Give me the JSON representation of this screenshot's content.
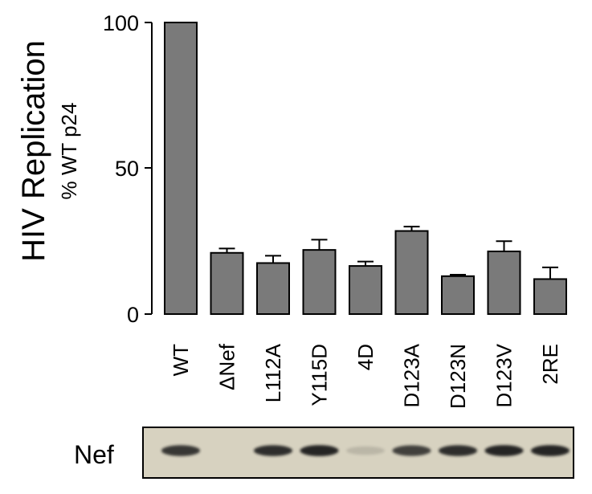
{
  "chart_data": {
    "type": "bar",
    "ylabel": "HIV Replication",
    "ylabel_sub": "% WT p24",
    "xlabel": "",
    "ylim": [
      0,
      100
    ],
    "yticks": [
      "0",
      "50",
      "100"
    ],
    "ytick_values": [
      0,
      50,
      100
    ],
    "categories": [
      "WT",
      "ΔNef",
      "L112A",
      "Y115D",
      "4D",
      "D123A",
      "D123N",
      "D123V",
      "2RE"
    ],
    "values": [
      100,
      21,
      17.5,
      22,
      16.5,
      28.5,
      13,
      21.5,
      12
    ],
    "errors": [
      0,
      1.5,
      2.5,
      3.5,
      1.5,
      1.5,
      0.5,
      3.5,
      4
    ],
    "bar_color": "#7a7a7a",
    "blot": {
      "label": "Nef",
      "band_intensity": [
        0.85,
        0,
        0.9,
        0.95,
        0.15,
        0.8,
        0.9,
        0.95,
        0.95
      ],
      "background": "#d7d2c0",
      "band_color": "#1a1a1a"
    }
  }
}
